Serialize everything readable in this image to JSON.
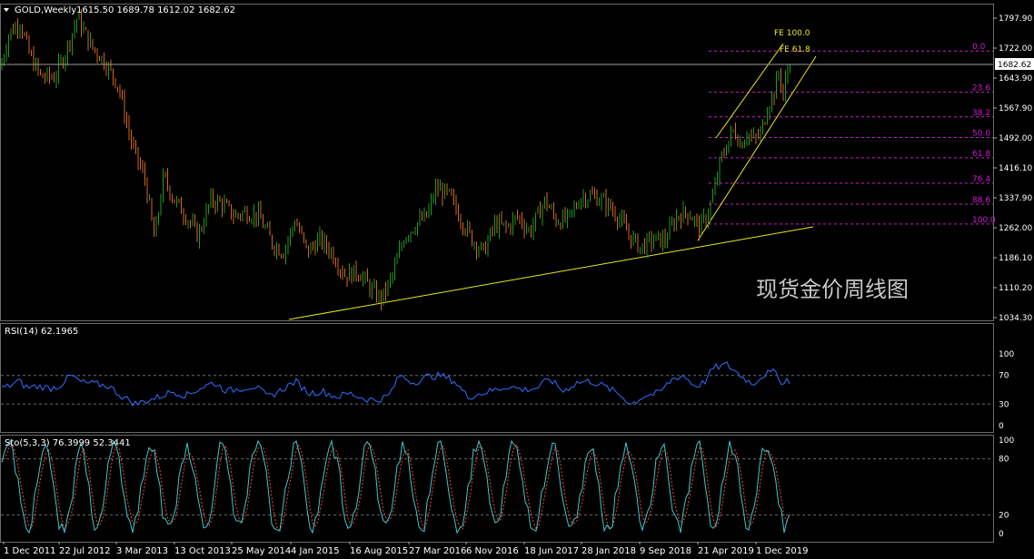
{
  "header": {
    "symbol": "GOLD,Weekly",
    "ohlc": "1615.50 1689.78 1612.02 1682.62",
    "arrow_icon": "triangle-down-icon"
  },
  "watermark": "现货金价周线图",
  "colors": {
    "background": "#000000",
    "bull": "#1f9a1f",
    "bear": "#d2691e",
    "trend": "#e8e820",
    "fib": "#d01ad0",
    "rsi": "#2f6fff",
    "stoch_main": "#3ec8c8",
    "stoch_signal": "#ff4040",
    "grid": "#6a6a6a"
  },
  "price_panel": {
    "ylim": [
      1034.3,
      1797.9
    ],
    "y_ticks": [
      "1797.90",
      "1722.00",
      "1643.90",
      "1567.90",
      "1492.00",
      "1416.10",
      "1337.90",
      "1262.00",
      "1186.10",
      "1110.20",
      "1034.30"
    ],
    "current_price": "1682.62",
    "fib_levels": [
      {
        "label": "0.0",
        "price": 1706
      },
      {
        "label": "23.6",
        "price": 1602
      },
      {
        "label": "38.2",
        "price": 1540
      },
      {
        "label": "50.0",
        "price": 1488
      },
      {
        "label": "61.8",
        "price": 1437
      },
      {
        "label": "76.4",
        "price": 1373
      },
      {
        "label": "88.6",
        "price": 1320
      },
      {
        "label": "100.0",
        "price": 1270
      }
    ],
    "fe_labels": [
      "FE 100.0",
      "FE 61.8"
    ]
  },
  "rsi_panel": {
    "label": "RSI(14) 62.1965",
    "ylim": [
      0,
      100
    ],
    "y_ticks": [
      "100",
      "70",
      "30",
      "0"
    ],
    "levels": [
      70,
      30
    ]
  },
  "stoch_panel": {
    "label": "Sto(5,3,3) 76.3999 52.3441",
    "ylim": [
      0,
      100
    ],
    "y_ticks": [
      "100",
      "80",
      "20",
      "0"
    ],
    "levels": [
      80,
      20
    ]
  },
  "x_axis": {
    "labels": [
      "1 Dec 2011",
      "22 Jul 2012",
      "3 Mar 2013",
      "13 Oct 2013",
      "25 May 2014",
      "4 Jan 2015",
      "16 Aug 2015",
      "27 Mar 2016",
      "6 Nov 2016",
      "18 Jun 2017",
      "28 Jan 2018",
      "9 Sep 2018",
      "21 Apr 2019",
      "1 Dec 2019"
    ]
  },
  "chart_data": {
    "type": "candlestick",
    "symbol": "GOLD",
    "timeframe": "Weekly",
    "last_close": 1682.62,
    "price_path": [
      [
        0,
        1660
      ],
      [
        10,
        1750
      ],
      [
        22,
        1780
      ],
      [
        32,
        1700
      ],
      [
        45,
        1640
      ],
      [
        60,
        1640
      ],
      [
        72,
        1700
      ],
      [
        85,
        1790
      ],
      [
        100,
        1720
      ],
      [
        115,
        1680
      ],
      [
        130,
        1620
      ],
      [
        145,
        1470
      ],
      [
        160,
        1380
      ],
      [
        170,
        1230
      ],
      [
        180,
        1390
      ],
      [
        192,
        1330
      ],
      [
        205,
        1290
      ],
      [
        218,
        1240
      ],
      [
        232,
        1330
      ],
      [
        245,
        1320
      ],
      [
        258,
        1290
      ],
      [
        270,
        1300
      ],
      [
        285,
        1290
      ],
      [
        300,
        1220
      ],
      [
        312,
        1200
      ],
      [
        325,
        1280
      ],
      [
        338,
        1200
      ],
      [
        352,
        1230
      ],
      [
        365,
        1200
      ],
      [
        380,
        1140
      ],
      [
        395,
        1150
      ],
      [
        410,
        1100
      ],
      [
        420,
        1080
      ],
      [
        432,
        1140
      ],
      [
        445,
        1240
      ],
      [
        458,
        1270
      ],
      [
        470,
        1290
      ],
      [
        480,
        1360
      ],
      [
        495,
        1340
      ],
      [
        508,
        1280
      ],
      [
        520,
        1230
      ],
      [
        532,
        1200
      ],
      [
        545,
        1270
      ],
      [
        558,
        1260
      ],
      [
        570,
        1290
      ],
      [
        583,
        1250
      ],
      [
        600,
        1330
      ],
      [
        612,
        1280
      ],
      [
        625,
        1280
      ],
      [
        640,
        1340
      ],
      [
        655,
        1340
      ],
      [
        668,
        1320
      ],
      [
        680,
        1290
      ],
      [
        693,
        1240
      ],
      [
        705,
        1210
      ],
      [
        718,
        1230
      ],
      [
        732,
        1230
      ],
      [
        745,
        1290
      ],
      [
        758,
        1300
      ],
      [
        770,
        1260
      ],
      [
        778,
        1290
      ],
      [
        786,
        1350
      ],
      [
        792,
        1420
      ],
      [
        800,
        1470
      ],
      [
        808,
        1510
      ],
      [
        815,
        1470
      ],
      [
        822,
        1500
      ],
      [
        830,
        1480
      ],
      [
        838,
        1500
      ],
      [
        845,
        1570
      ],
      [
        852,
        1600
      ],
      [
        858,
        1660
      ],
      [
        862,
        1590
      ],
      [
        866,
        1650
      ],
      [
        870,
        1682
      ]
    ],
    "rsi_path": [
      [
        0,
        52
      ],
      [
        10,
        55
      ],
      [
        20,
        62
      ],
      [
        30,
        53
      ],
      [
        42,
        55
      ],
      [
        55,
        52
      ],
      [
        65,
        55
      ],
      [
        78,
        70
      ],
      [
        90,
        60
      ],
      [
        105,
        58
      ],
      [
        120,
        55
      ],
      [
        135,
        40
      ],
      [
        150,
        30
      ],
      [
        162,
        35
      ],
      [
        175,
        40
      ],
      [
        190,
        48
      ],
      [
        205,
        42
      ],
      [
        220,
        52
      ],
      [
        235,
        60
      ],
      [
        250,
        48
      ],
      [
        265,
        52
      ],
      [
        280,
        55
      ],
      [
        295,
        40
      ],
      [
        310,
        50
      ],
      [
        325,
        62
      ],
      [
        340,
        45
      ],
      [
        355,
        48
      ],
      [
        370,
        40
      ],
      [
        385,
        45
      ],
      [
        400,
        38
      ],
      [
        415,
        35
      ],
      [
        428,
        42
      ],
      [
        440,
        70
      ],
      [
        455,
        60
      ],
      [
        470,
        68
      ],
      [
        485,
        70
      ],
      [
        500,
        62
      ],
      [
        515,
        40
      ],
      [
        530,
        45
      ],
      [
        545,
        50
      ],
      [
        560,
        55
      ],
      [
        575,
        50
      ],
      [
        590,
        52
      ],
      [
        605,
        65
      ],
      [
        620,
        48
      ],
      [
        635,
        60
      ],
      [
        650,
        62
      ],
      [
        665,
        55
      ],
      [
        680,
        45
      ],
      [
        695,
        30
      ],
      [
        710,
        42
      ],
      [
        725,
        45
      ],
      [
        740,
        65
      ],
      [
        752,
        70
      ],
      [
        765,
        55
      ],
      [
        775,
        60
      ],
      [
        785,
        80
      ],
      [
        800,
        85
      ],
      [
        815,
        70
      ],
      [
        828,
        58
      ],
      [
        842,
        72
      ],
      [
        855,
        75
      ],
      [
        862,
        55
      ],
      [
        866,
        65
      ],
      [
        870,
        62
      ]
    ],
    "rsi_value": 62.1965,
    "stoch_main": 76.3999,
    "stoch_signal": 52.3441
  }
}
